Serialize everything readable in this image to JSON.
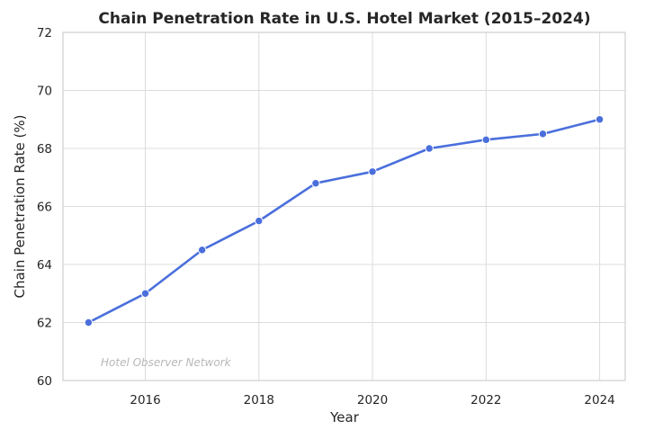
{
  "chart_data": {
    "type": "line",
    "title": "Chain Penetration Rate in U.S. Hotel Market (2015–2024)",
    "xlabel": "Year",
    "ylabel": "Chain Penetration Rate (%)",
    "x": [
      2015,
      2016,
      2017,
      2018,
      2019,
      2020,
      2021,
      2022,
      2023,
      2024
    ],
    "series": [
      {
        "values": [
          62.0,
          63.0,
          64.5,
          65.5,
          66.8,
          67.2,
          68.0,
          68.3,
          68.5,
          69.0
        ]
      }
    ],
    "xlim": [
      2014.55,
      2024.45
    ],
    "ylim": [
      60,
      72
    ],
    "xticks": [
      "2016",
      "2018",
      "2020",
      "2022",
      "2024"
    ],
    "yticks": [
      "60",
      "62",
      "64",
      "66",
      "68",
      "70",
      "72"
    ],
    "grid": true,
    "line_color": "#4a6fdc",
    "marker": "circle",
    "annotation": "Hotel Observer Network"
  }
}
